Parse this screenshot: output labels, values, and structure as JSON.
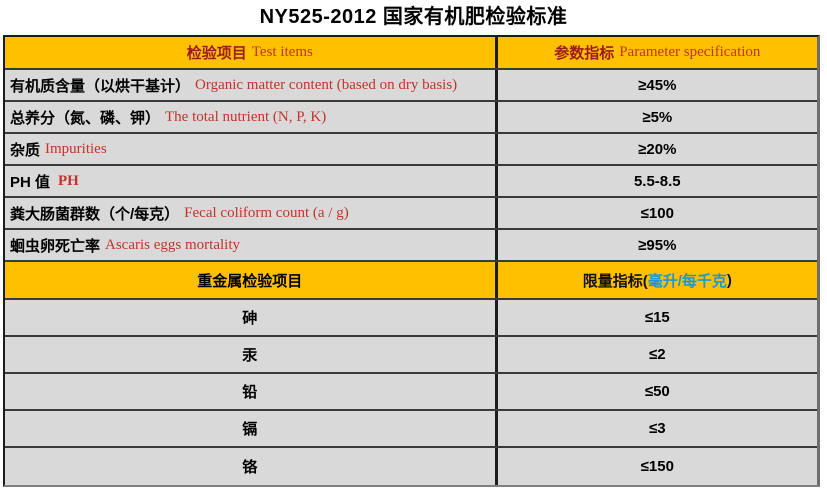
{
  "title": "NY525-2012 国家有机肥检验标准",
  "colors": {
    "header_bg": "#ffc000",
    "row_bg": "#d9d9d9",
    "header_zh_red": "#9c1c1c",
    "english_red": "#c2342b",
    "unit_blue": "#1b97d4",
    "border_dark": "#1c1c1c"
  },
  "table1": {
    "header": {
      "col1_zh": "检验项目",
      "col1_en": "Test items",
      "col2_zh": "参数指标",
      "col2_en": "Parameter specification"
    },
    "rows": [
      {
        "zh": "有机质含量（以烘干基计）",
        "en": "Organic matter content (based on dry basis)",
        "value": "≥45%"
      },
      {
        "zh": "总养分（氮、磷、钾）",
        "en": "The total nutrient (N, P, K)",
        "value": "≥5%"
      },
      {
        "zh": "杂质",
        "en": "Impurities",
        "value": "≥20%"
      },
      {
        "zh": "PH 值",
        "en": "PH",
        "value": "5.5-8.5"
      },
      {
        "zh": "粪大肠菌群数（个/每克）",
        "en": "Fecal coliform count (a / g)",
        "value": "≤100"
      },
      {
        "zh": "蛔虫卵死亡率",
        "en": "Ascaris eggs mortality",
        "value": "≥95%"
      }
    ]
  },
  "table2": {
    "header": {
      "col1": "重金属检验项目",
      "col2_prefix": "限量指标(",
      "col2_unit": "毫升/每千克",
      "col2_suffix": ")"
    },
    "rows": [
      {
        "name": "砷",
        "value": "≤15"
      },
      {
        "name": "汞",
        "value": "≤2"
      },
      {
        "name": "铅",
        "value": "≤50"
      },
      {
        "name": "镉",
        "value": "≤3"
      },
      {
        "name": "铬",
        "value": "≤150"
      }
    ]
  }
}
